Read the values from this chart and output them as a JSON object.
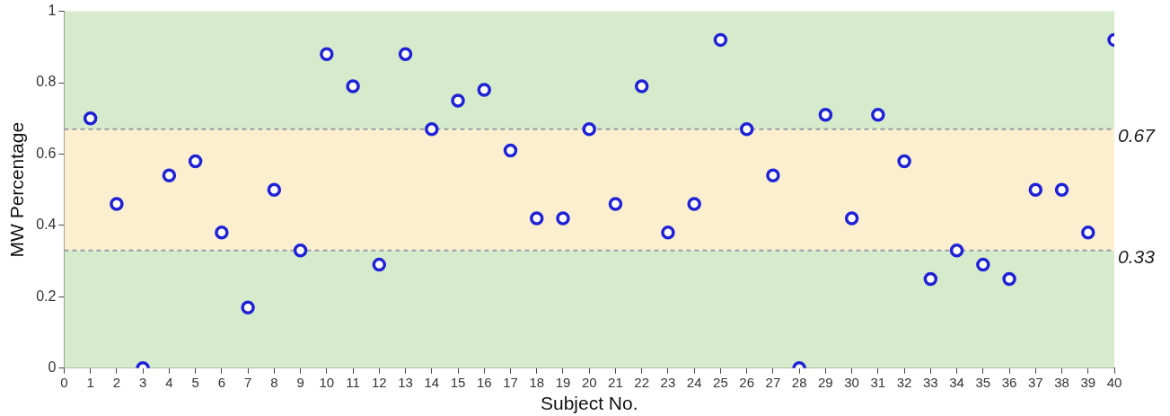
{
  "chart_data": {
    "type": "scatter",
    "xlabel": "Subject No.",
    "ylabel": "MW Percentage",
    "x": [
      1,
      2,
      3,
      4,
      5,
      6,
      7,
      8,
      9,
      10,
      11,
      12,
      13,
      14,
      15,
      16,
      17,
      18,
      19,
      20,
      21,
      22,
      23,
      24,
      25,
      26,
      27,
      28,
      29,
      30,
      31,
      32,
      33,
      34,
      35,
      36,
      37,
      38,
      39,
      40
    ],
    "series": [
      {
        "color": "#1f22d6",
        "values": [
          0.7,
          0.46,
          0,
          0.54,
          0.58,
          0.38,
          0.17,
          0.5,
          0.33,
          0.88,
          0.79,
          0.29,
          0.88,
          0.67,
          0.75,
          0.78,
          0.61,
          0.42,
          0.42,
          0.67,
          0.46,
          0.79,
          0.38,
          0.46,
          0.92,
          0.67,
          0.54,
          0,
          0.71,
          0.42,
          0.71,
          0.58,
          0.25,
          0.33,
          0.29,
          0.25,
          0.5,
          0.5,
          0.38,
          0.92
        ]
      }
    ],
    "xlim": [
      0,
      40
    ],
    "xticks": [
      0,
      1,
      2,
      3,
      4,
      5,
      6,
      7,
      8,
      9,
      10,
      11,
      12,
      13,
      14,
      15,
      16,
      17,
      18,
      19,
      20,
      21,
      22,
      23,
      24,
      25,
      26,
      27,
      28,
      29,
      30,
      31,
      32,
      33,
      34,
      35,
      36,
      37,
      38,
      39,
      40
    ],
    "ylim": [
      0,
      1
    ],
    "yticks": [
      0,
      0.2,
      0.4,
      0.6,
      0.8,
      1
    ],
    "bands": [
      {
        "axis": "y",
        "from": 0,
        "to": 0.33,
        "color": "#d6ebcb"
      },
      {
        "axis": "y",
        "from": 0.33,
        "to": 0.67,
        "color": "#fcefcf"
      },
      {
        "axis": "y",
        "from": 0.67,
        "to": 1,
        "color": "#d6ebcb"
      }
    ],
    "ref_lines": [
      {
        "axis": "y",
        "value": 0.67,
        "label": "0.67",
        "color": "#9a9aa8",
        "line_style": "dashed"
      },
      {
        "axis": "y",
        "value": 0.33,
        "label": "0.33",
        "color": "#9a9aa8",
        "line_style": "dashed"
      }
    ],
    "grid": false,
    "legend": false,
    "marker": "circle"
  }
}
